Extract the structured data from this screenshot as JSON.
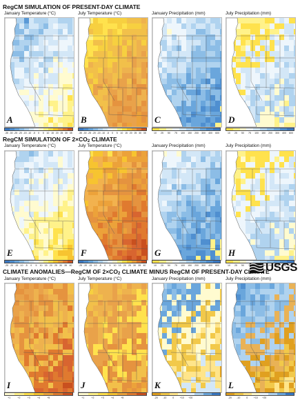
{
  "sections": [
    {
      "title": "RegCM SIMULATION OF PRESENT-DAY CLIMATE",
      "title_sub": ""
    },
    {
      "title": "RegCM SIMULATION OF 2×CO",
      "title_sub": "2",
      "title_after": " CLIMATE"
    },
    {
      "title": "CLIMATE ANOMALIES—RegCM OF 2×CO",
      "title_sub": "2",
      "title_after": " CLIMATE MINUS RegCM OF PRESENT-DAY CLIMATE"
    }
  ],
  "panel_titles": [
    "January Temperature (°C)",
    "July Temperature (°C)",
    "January Precipitation (mm)",
    "July Precipitation (mm)"
  ],
  "panels": [
    {
      "letter": "A",
      "palette": "temp_cold",
      "seed": 1
    },
    {
      "letter": "B",
      "palette": "temp_warm",
      "seed": 2
    },
    {
      "letter": "C",
      "palette": "precip_wet",
      "seed": 3
    },
    {
      "letter": "D",
      "palette": "precip_mixed",
      "seed": 4
    },
    {
      "letter": "E",
      "palette": "temp_cold2",
      "seed": 5
    },
    {
      "letter": "F",
      "palette": "temp_warm2",
      "seed": 6
    },
    {
      "letter": "G",
      "palette": "precip_wet",
      "seed": 7
    },
    {
      "letter": "H",
      "palette": "precip_mixed",
      "seed": 8
    },
    {
      "letter": "I",
      "palette": "anom_temp_jan",
      "seed": 9
    },
    {
      "letter": "J",
      "palette": "anom_temp_jul",
      "seed": 10
    },
    {
      "letter": "K",
      "palette": "anom_precip_jan",
      "seed": 11
    },
    {
      "letter": "L",
      "palette": "anom_precip_jul",
      "seed": 12
    }
  ],
  "legends": [
    {
      "colors": [
        "#3a78c2",
        "#4f8fd0",
        "#6aa6dc",
        "#8cbde6",
        "#b0d3ef",
        "#d3e7f7",
        "#eef6fc",
        "#fffbd0",
        "#fff28a",
        "#ffe24d",
        "#f7c430",
        "#eca23a",
        "#e07a2f",
        "#c9501f"
      ],
      "ticks": [
        "-35",
        "-30",
        "-25",
        "-20",
        "-15",
        "-10",
        "-5",
        "0",
        "5",
        "10",
        "15",
        "20",
        "25",
        "30",
        "35"
      ]
    },
    {
      "colors": [
        "#3a78c2",
        "#4f8fd0",
        "#6aa6dc",
        "#8cbde6",
        "#b0d3ef",
        "#d3e7f7",
        "#eef6fc",
        "#fffbd0",
        "#fff28a",
        "#ffe24d",
        "#f7c430",
        "#eca23a",
        "#e07a2f",
        "#c9501f"
      ],
      "ticks": [
        "-35",
        "-30",
        "-25",
        "-20",
        "-15",
        "-10",
        "-5",
        "0",
        "5",
        "10",
        "15",
        "20",
        "25",
        "30",
        "35"
      ]
    },
    {
      "colors": [
        "#ffe24d",
        "#fff28a",
        "#fffbd0",
        "#eef6fc",
        "#d3e7f7",
        "#b0d3ef",
        "#8cbde6",
        "#6aa6dc",
        "#4f8fd0",
        "#3a78c2"
      ],
      "ticks": [
        "10",
        "25",
        "50",
        "75",
        "100",
        "150",
        "200",
        "300",
        "400",
        "600"
      ]
    },
    {
      "colors": [
        "#ffe24d",
        "#fff28a",
        "#fffbd0",
        "#eef6fc",
        "#d3e7f7",
        "#b0d3ef",
        "#8cbde6",
        "#6aa6dc",
        "#4f8fd0",
        "#3a78c2"
      ],
      "ticks": [
        "10",
        "25",
        "50",
        "75",
        "100",
        "150",
        "200",
        "300",
        "400",
        "600"
      ]
    },
    {
      "colors": [
        "#3a78c2",
        "#4f8fd0",
        "#6aa6dc",
        "#8cbde6",
        "#b0d3ef",
        "#d3e7f7",
        "#eef6fc",
        "#fffbd0",
        "#fff28a",
        "#ffe24d",
        "#f7c430",
        "#eca23a",
        "#e07a2f",
        "#c9501f"
      ],
      "ticks": [
        "-25",
        "-20",
        "-15",
        "-10",
        "-5",
        "0",
        "5",
        "10",
        "15",
        "20",
        "25",
        "30",
        "35",
        "40"
      ]
    },
    {
      "colors": [
        "#3a78c2",
        "#4f8fd0",
        "#6aa6dc",
        "#8cbde6",
        "#b0d3ef",
        "#d3e7f7",
        "#eef6fc",
        "#fffbd0",
        "#fff28a",
        "#ffe24d",
        "#f7c430",
        "#eca23a",
        "#e07a2f",
        "#c9501f"
      ],
      "ticks": [
        "-25",
        "-20",
        "-15",
        "-10",
        "-5",
        "0",
        "5",
        "10",
        "15",
        "20",
        "25",
        "30",
        "35",
        "40"
      ]
    },
    {
      "colors": [
        "#ffe24d",
        "#fff28a",
        "#fffbd0",
        "#eef6fc",
        "#d3e7f7",
        "#b0d3ef",
        "#8cbde6",
        "#6aa6dc",
        "#4f8fd0",
        "#3a78c2"
      ],
      "ticks": [
        "10",
        "25",
        "50",
        "75",
        "100",
        "150",
        "200",
        "300",
        "400",
        "600"
      ]
    },
    {
      "colors": [
        "#ffe24d",
        "#fff28a",
        "#fffbd0",
        "#eef6fc",
        "#d3e7f7",
        "#b0d3ef",
        "#8cbde6",
        "#6aa6dc",
        "#4f8fd0",
        "#3a78c2"
      ],
      "ticks": [
        "10",
        "25",
        "50",
        "75",
        "100",
        "150",
        "200",
        "300",
        "400",
        "600"
      ]
    },
    {
      "colors": [
        "#fffbd0",
        "#fff28a",
        "#ffe24d",
        "#f7c430",
        "#eca23a",
        "#e07a2f",
        "#c9501f"
      ],
      "ticks": [
        "+1",
        "+2",
        "+3",
        "+4",
        "+5",
        "",
        ""
      ]
    },
    {
      "colors": [
        "#fffbd0",
        "#fff28a",
        "#ffe24d",
        "#f7c430",
        "#eca23a",
        "#e07a2f",
        "#c9501f"
      ],
      "ticks": [
        "+1",
        "+2",
        "+3",
        "+4",
        "+5",
        "",
        ""
      ]
    },
    {
      "colors": [
        "#e0a020",
        "#f2c94a",
        "#ffe58a",
        "#fffbd0",
        "#eef6fc",
        "#b0d3ef",
        "#6aa6dc",
        "#3a78c2"
      ],
      "ticks": [
        "-20",
        "-10",
        "0",
        "+10",
        "+20",
        "",
        "",
        ""
      ]
    },
    {
      "colors": [
        "#e0a020",
        "#f2c94a",
        "#ffe58a",
        "#fffbd0",
        "#eef6fc",
        "#b0d3ef",
        "#6aa6dc",
        "#3a78c2"
      ],
      "ticks": [
        "-20",
        "-10",
        "0",
        "+10",
        "+20",
        "",
        "",
        ""
      ]
    }
  ],
  "logo": {
    "text": "USGS"
  }
}
